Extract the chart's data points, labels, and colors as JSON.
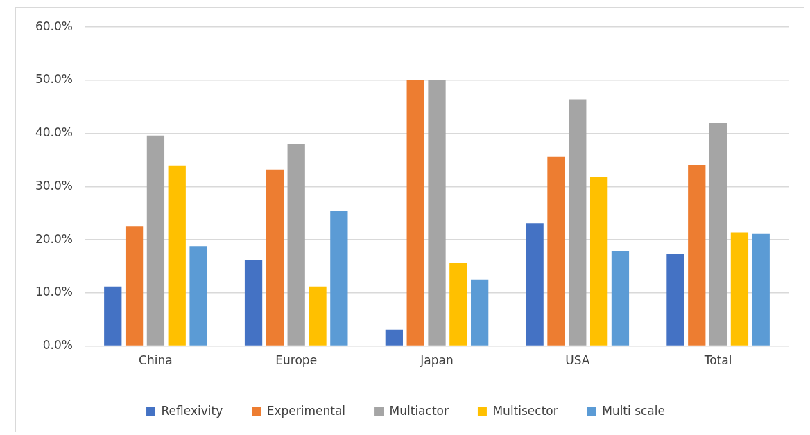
{
  "chart_data": {
    "type": "bar",
    "categories": [
      "China",
      "Europe",
      "Japan",
      "USA",
      "Total"
    ],
    "series": [
      {
        "name": "Reflexivity",
        "color": "#4472c4",
        "values": [
          11.2,
          16.1,
          3.1,
          23.1,
          17.4
        ]
      },
      {
        "name": "Experimental",
        "color": "#ed7d31",
        "values": [
          22.6,
          33.2,
          50.0,
          35.7,
          34.1
        ]
      },
      {
        "name": "Multiactor",
        "color": "#a5a5a5",
        "values": [
          39.6,
          38.0,
          50.0,
          46.4,
          42.0
        ]
      },
      {
        "name": "Multisector",
        "color": "#ffc000",
        "values": [
          34.0,
          11.2,
          15.6,
          31.8,
          21.4
        ]
      },
      {
        "name": "Multi scale",
        "color": "#5b9bd5",
        "values": [
          18.8,
          25.4,
          12.5,
          17.8,
          21.1
        ]
      }
    ],
    "ylim": [
      0,
      60
    ],
    "yticks": [
      {
        "value": 0,
        "label": "0.0%"
      },
      {
        "value": 10,
        "label": "10.0%"
      },
      {
        "value": 20,
        "label": "20.0%"
      },
      {
        "value": 30,
        "label": "30.0%"
      },
      {
        "value": 40,
        "label": "40.0%"
      },
      {
        "value": 50,
        "label": "50.0%"
      },
      {
        "value": 60,
        "label": "60.0%"
      }
    ],
    "grid": "y",
    "legend": "bottom"
  }
}
